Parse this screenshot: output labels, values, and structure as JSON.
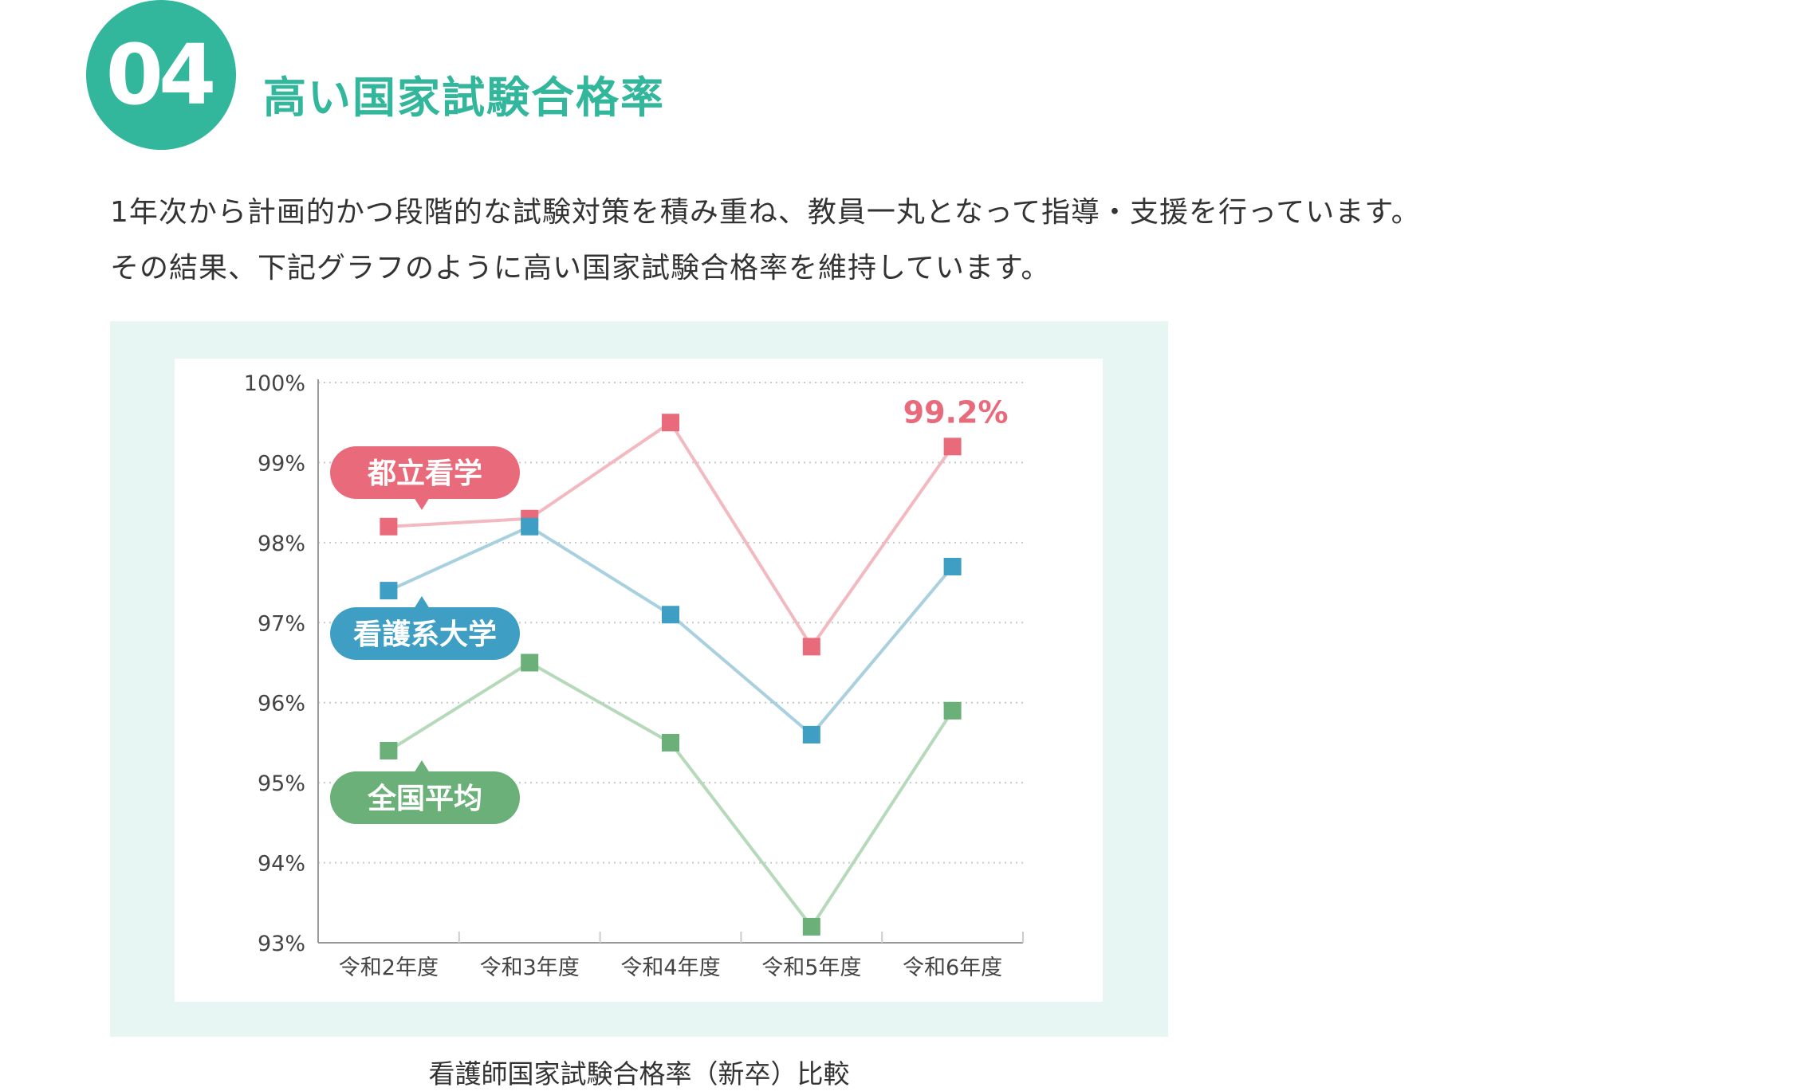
{
  "header": {
    "number": "04",
    "title": "高い国家試験合格率"
  },
  "intro": {
    "line1": "1年次から計画的かつ段階的な試験対策を積み重ね、教員一丸となって指導・支援を行っています。",
    "line2": "その結果、下記グラフのように高い国家試験合格率を維持しています。"
  },
  "caption": "看護師国家試験合格率（新卒）比較",
  "colors": {
    "accent": "#32b79c",
    "panel_bg": "#e8f6f3"
  },
  "chart_data": {
    "type": "line",
    "categories": [
      "令和2年度",
      "令和3年度",
      "令和4年度",
      "令和5年度",
      "令和6年度"
    ],
    "ylim": [
      93,
      100
    ],
    "yticks": [
      "93%",
      "94%",
      "95%",
      "96%",
      "97%",
      "98%",
      "99%",
      "100%"
    ],
    "grid": true,
    "series": [
      {
        "name": "都立看学",
        "values": [
          98.2,
          98.3,
          99.5,
          96.7,
          99.2
        ],
        "color": "#e96a7b",
        "line_color": "#f2b9bf"
      },
      {
        "name": "看護系大学",
        "values": [
          97.4,
          98.2,
          97.1,
          95.6,
          97.7
        ],
        "color": "#3e9ec4",
        "line_color": "#a8d0df"
      },
      {
        "name": "全国平均",
        "values": [
          95.4,
          96.5,
          95.5,
          93.2,
          95.9
        ],
        "color": "#6ab078",
        "line_color": "#b5d9b9"
      }
    ],
    "annotation": "99.2%"
  }
}
